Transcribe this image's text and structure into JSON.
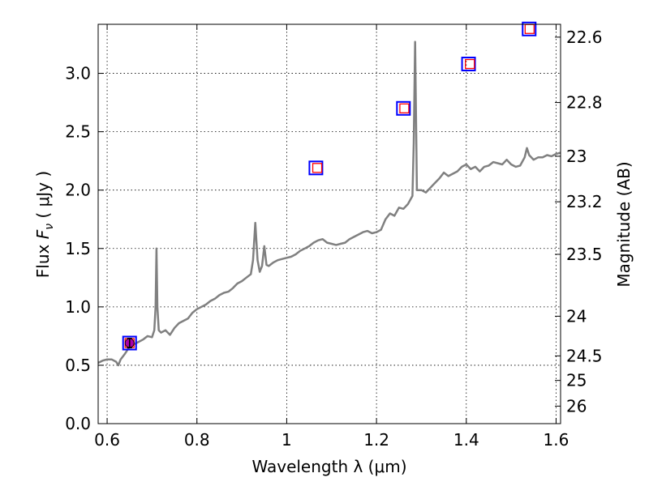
{
  "chart_data": {
    "type": "scatter",
    "xlabel": "Wavelength  λ (μm)",
    "ylabel": "Flux  F_ν  ( μJy )",
    "ylabel_parts": {
      "prefix": "Flux  ",
      "symbol": "F",
      "subscript": "ν",
      "unit": "  ( μJy )"
    },
    "y2label": "Magnitude (AB)",
    "xlim": [
      0.58,
      1.61
    ],
    "ylim": [
      0.0,
      3.42
    ],
    "grid": true,
    "x_ticks": [
      {
        "v": 0.6,
        "label": "0.6"
      },
      {
        "v": 0.8,
        "label": "0.8"
      },
      {
        "v": 1.0,
        "label": "1"
      },
      {
        "v": 1.2,
        "label": "1.2"
      },
      {
        "v": 1.4,
        "label": "1.4"
      },
      {
        "v": 1.6,
        "label": "1.6"
      }
    ],
    "y_ticks": [
      {
        "v": 0.0,
        "label": "0.0"
      },
      {
        "v": 0.5,
        "label": "0.5"
      },
      {
        "v": 1.0,
        "label": "1.0"
      },
      {
        "v": 1.5,
        "label": "1.5"
      },
      {
        "v": 2.0,
        "label": "2.0"
      },
      {
        "v": 2.5,
        "label": "2.5"
      },
      {
        "v": 3.0,
        "label": "3.0"
      }
    ],
    "y2_ticks": [
      {
        "flux": 3.31,
        "label": "22.6"
      },
      {
        "flux": 2.75,
        "label": "22.8"
      },
      {
        "flux": 2.29,
        "label": "23"
      },
      {
        "flux": 1.9,
        "label": "23.2"
      },
      {
        "flux": 1.45,
        "label": "23.5"
      },
      {
        "flux": 0.92,
        "label": "24"
      },
      {
        "flux": 0.58,
        "label": "24.5"
      },
      {
        "flux": 0.37,
        "label": "25"
      },
      {
        "flux": 0.15,
        "label": "26"
      }
    ],
    "series": [
      {
        "type": "line",
        "color": "#808080",
        "x": [
          0.58,
          0.59,
          0.6,
          0.61,
          0.62,
          0.625,
          0.63,
          0.64,
          0.65,
          0.66,
          0.67,
          0.68,
          0.69,
          0.7,
          0.705,
          0.708,
          0.71,
          0.712,
          0.715,
          0.72,
          0.73,
          0.74,
          0.75,
          0.76,
          0.77,
          0.78,
          0.79,
          0.8,
          0.81,
          0.82,
          0.83,
          0.84,
          0.85,
          0.86,
          0.87,
          0.88,
          0.89,
          0.9,
          0.91,
          0.92,
          0.925,
          0.93,
          0.935,
          0.94,
          0.945,
          0.95,
          0.955,
          0.96,
          0.97,
          0.98,
          0.99,
          1.0,
          1.01,
          1.02,
          1.03,
          1.04,
          1.05,
          1.06,
          1.07,
          1.08,
          1.09,
          1.1,
          1.11,
          1.12,
          1.13,
          1.14,
          1.15,
          1.16,
          1.17,
          1.18,
          1.19,
          1.2,
          1.21,
          1.22,
          1.23,
          1.24,
          1.25,
          1.26,
          1.27,
          1.28,
          1.283,
          1.286,
          1.29,
          1.3,
          1.31,
          1.32,
          1.33,
          1.34,
          1.35,
          1.36,
          1.37,
          1.38,
          1.39,
          1.4,
          1.41,
          1.42,
          1.43,
          1.44,
          1.45,
          1.46,
          1.47,
          1.48,
          1.49,
          1.5,
          1.51,
          1.52,
          1.53,
          1.535,
          1.54,
          1.55,
          1.56,
          1.57,
          1.58,
          1.59,
          1.6,
          1.61
        ],
        "y": [
          0.52,
          0.54,
          0.55,
          0.55,
          0.53,
          0.5,
          0.55,
          0.6,
          0.66,
          0.68,
          0.7,
          0.72,
          0.75,
          0.74,
          0.8,
          1.0,
          1.5,
          1.0,
          0.8,
          0.78,
          0.8,
          0.76,
          0.82,
          0.86,
          0.88,
          0.9,
          0.95,
          0.98,
          1.0,
          1.02,
          1.05,
          1.07,
          1.1,
          1.12,
          1.13,
          1.16,
          1.2,
          1.22,
          1.25,
          1.28,
          1.4,
          1.72,
          1.4,
          1.3,
          1.35,
          1.52,
          1.36,
          1.35,
          1.38,
          1.4,
          1.41,
          1.42,
          1.43,
          1.45,
          1.48,
          1.5,
          1.52,
          1.55,
          1.57,
          1.58,
          1.55,
          1.54,
          1.53,
          1.54,
          1.55,
          1.58,
          1.6,
          1.62,
          1.64,
          1.65,
          1.63,
          1.64,
          1.66,
          1.75,
          1.8,
          1.78,
          1.85,
          1.84,
          1.88,
          1.95,
          2.4,
          3.27,
          2.0,
          2.0,
          1.98,
          2.02,
          2.06,
          2.1,
          2.15,
          2.12,
          2.14,
          2.16,
          2.2,
          2.22,
          2.18,
          2.2,
          2.16,
          2.2,
          2.21,
          2.24,
          2.23,
          2.22,
          2.26,
          2.22,
          2.2,
          2.21,
          2.28,
          2.36,
          2.3,
          2.26,
          2.28,
          2.28,
          2.3,
          2.29,
          2.31,
          2.32
        ]
      },
      {
        "type": "scatter",
        "marker": "square-open",
        "color": "#0000ff",
        "x": [
          0.65,
          1.065,
          1.26,
          1.405,
          1.54
        ],
        "y": [
          0.69,
          2.19,
          2.7,
          3.08,
          3.38
        ]
      },
      {
        "type": "scatter",
        "marker": "square-open",
        "color": "#ff0000",
        "x": [
          0.65,
          1.068,
          1.262,
          1.408,
          1.541
        ],
        "y": [
          0.69,
          2.19,
          2.7,
          3.08,
          3.38
        ]
      },
      {
        "type": "errorbar",
        "marker": "circle",
        "color": "#aa00aa",
        "x": [
          0.65
        ],
        "y": [
          0.69
        ],
        "yerr": [
          0.04
        ]
      }
    ]
  }
}
